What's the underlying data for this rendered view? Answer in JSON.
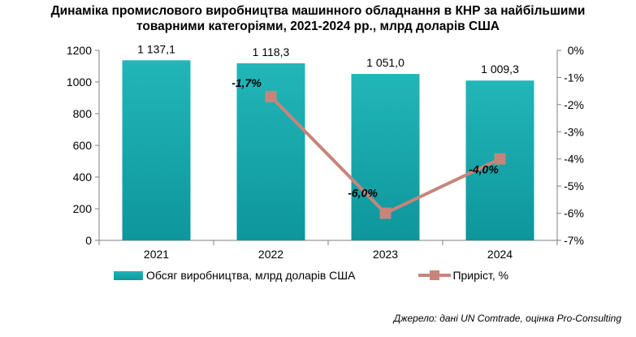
{
  "chart_data": {
    "type": "bar+line",
    "title": "Динаміка промислового виробництва машинного обладнання в КНР за найбільшими товарними категоріями, 2021-2024 рр., млрд доларів США",
    "title_lines": [
      "Динаміка промислового виробництва машинного обладнання в КНР за найбільшими",
      "товарними категоріями, 2021-2024 рр., млрд доларів США"
    ],
    "categories": [
      "2021",
      "2022",
      "2023",
      "2024"
    ],
    "series": [
      {
        "name": "Обсяг виробництва, млрд доларів США",
        "type": "bar",
        "axis": "left",
        "values": [
          1137.1,
          1118.3,
          1051.0,
          1009.3
        ],
        "labels": [
          "1 137,1",
          "1 118,3",
          "1 051,0",
          "1 009,3"
        ]
      },
      {
        "name": "Приріст, %",
        "type": "line",
        "axis": "right",
        "values": [
          null,
          -1.7,
          -6.0,
          -4.0
        ],
        "labels": [
          "",
          "-1,7%",
          "-6,0%",
          "-4,0%"
        ]
      }
    ],
    "y_left": {
      "min": 0,
      "max": 1200,
      "ticks": [
        "0",
        "200",
        "400",
        "600",
        "800",
        "1000",
        "1200"
      ]
    },
    "y_right": {
      "min": -7,
      "max": 0,
      "ticks": [
        "0%",
        "-1%",
        "-2%",
        "-3%",
        "-4%",
        "-5%",
        "-6%",
        "-7%"
      ]
    },
    "legend_position": "bottom",
    "colors": {
      "bar": "#14a5aa",
      "bar_top": "#22b6b8",
      "line": "#c8847b"
    }
  },
  "source": "Джерело: дані UN Comtrade, оцінка Pro-Consulting"
}
